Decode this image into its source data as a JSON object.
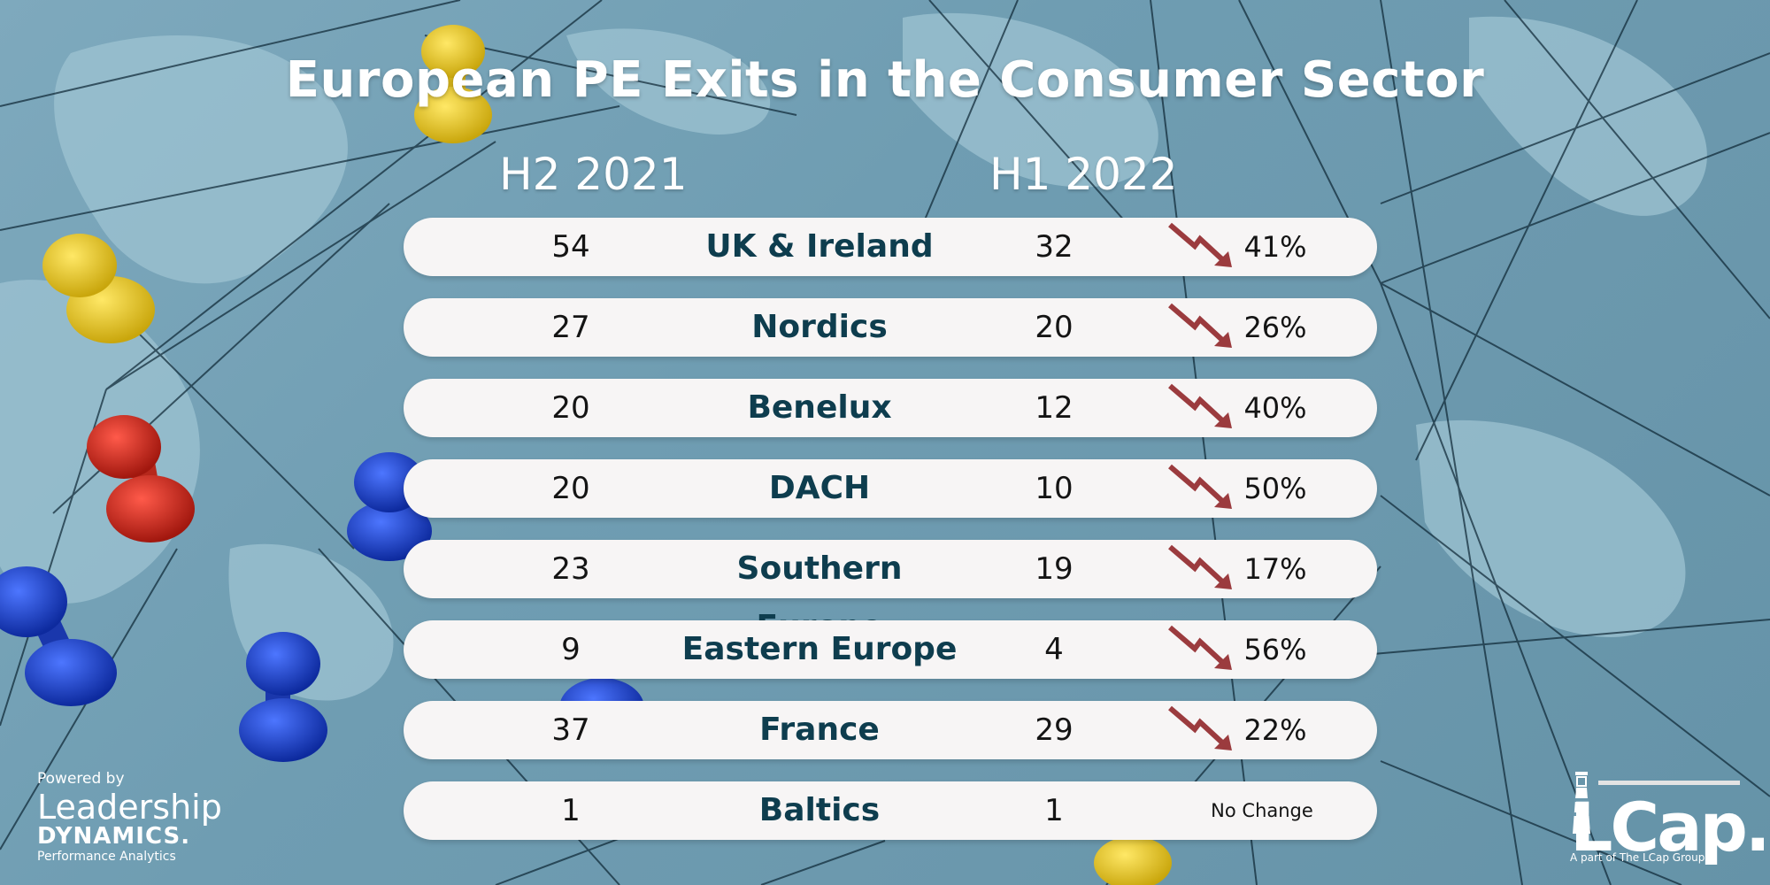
{
  "title": "European PE Exits in the Consumer Sector",
  "headers": {
    "prev": "H2 2021",
    "curr": "H1 2022"
  },
  "colors": {
    "region_text": "#0e3d4e",
    "arrow": "#9b3b3e",
    "row_bg": "#f7f5f5"
  },
  "rows": [
    {
      "prev": "54",
      "region": "UK & Ireland",
      "curr": "32",
      "change": "41%",
      "trend": "down"
    },
    {
      "prev": "27",
      "region": "Nordics",
      "curr": "20",
      "change": "26%",
      "trend": "down"
    },
    {
      "prev": "20",
      "region": "Benelux",
      "curr": "12",
      "change": "40%",
      "trend": "down"
    },
    {
      "prev": "20",
      "region": "DACH",
      "curr": "10",
      "change": "50%",
      "trend": "down"
    },
    {
      "prev": "23",
      "region": "Southern Europe",
      "curr": "19",
      "change": "17%",
      "trend": "down"
    },
    {
      "prev": "9",
      "region": "Eastern Europe",
      "curr": "4",
      "change": "56%",
      "trend": "down"
    },
    {
      "prev": "37",
      "region": "France",
      "curr": "29",
      "change": "22%",
      "trend": "down"
    },
    {
      "prev": "1",
      "region": "Baltics",
      "curr": "1",
      "change": "No Change",
      "trend": "none"
    }
  ],
  "powered_by": {
    "label": "Powered by",
    "name_line1": "Leadership",
    "name_line2": "DYNAMICS.",
    "tagline": "Performance Analytics"
  },
  "lcap": {
    "brand": "LCap.",
    "tagline": "A part of The LCap Group"
  }
}
